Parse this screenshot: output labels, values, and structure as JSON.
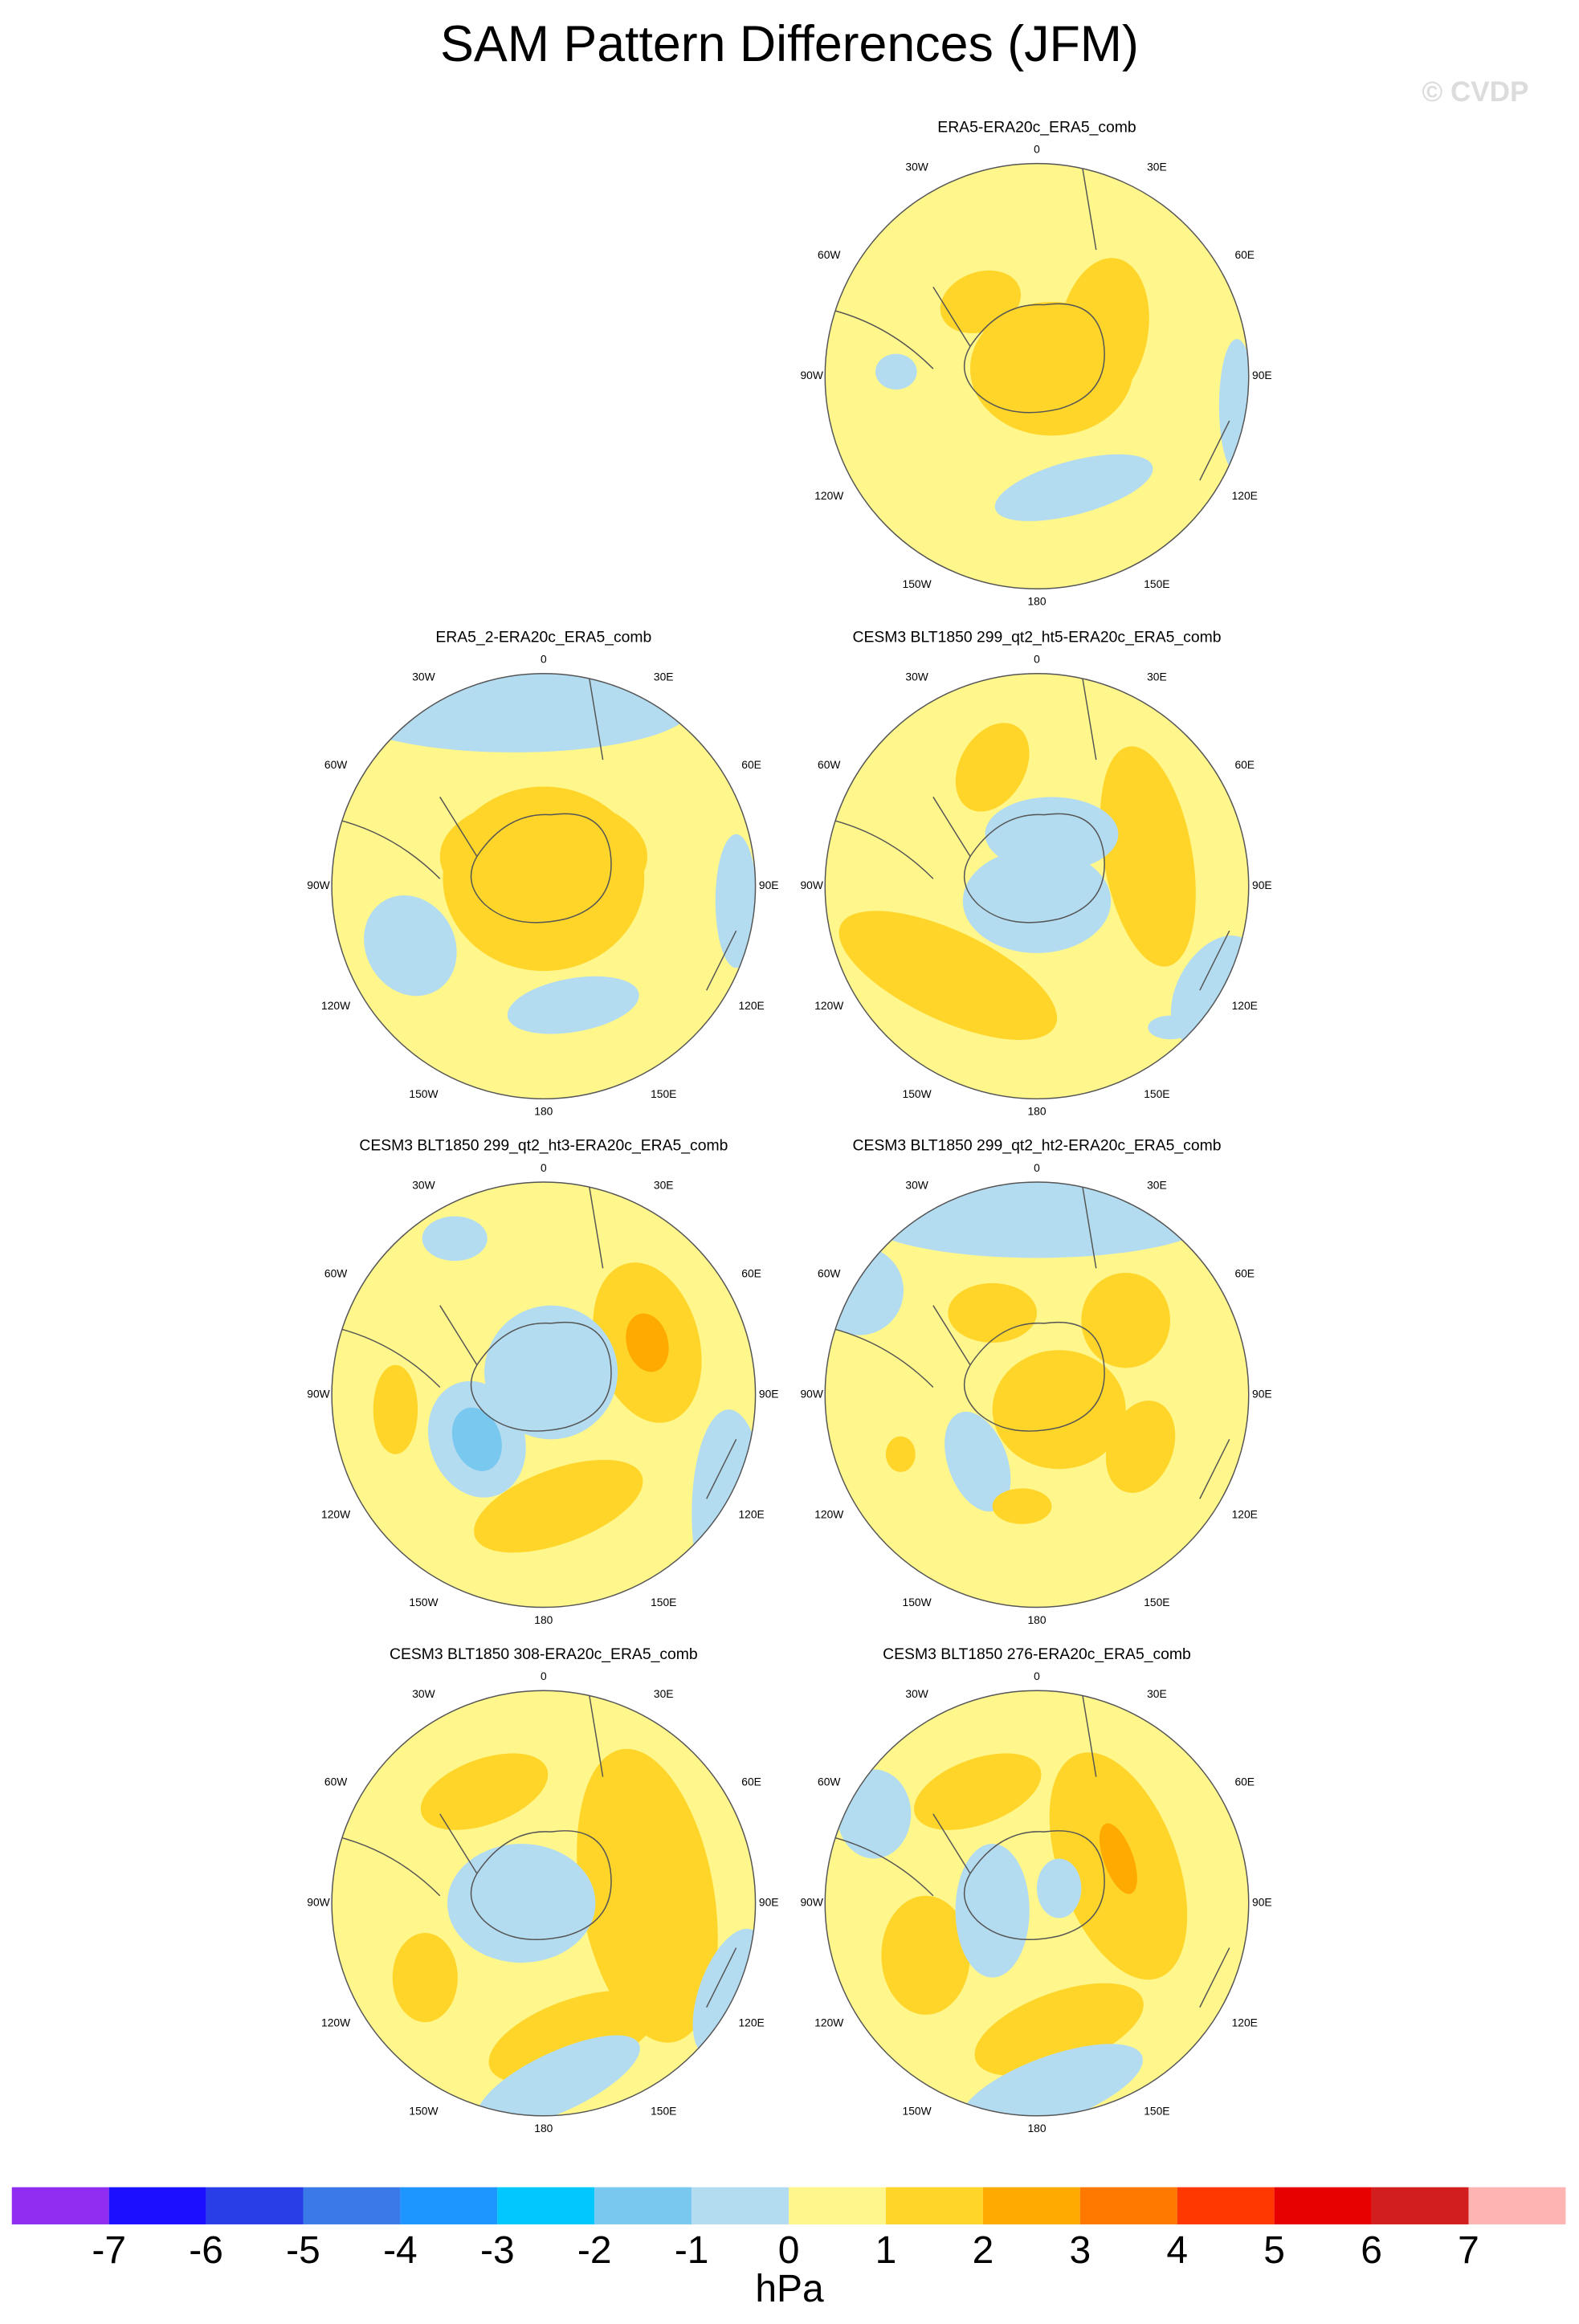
{
  "chart_data": {
    "type": "polar-map-panel",
    "title": "SAM Pattern Differences (JFM)",
    "watermark": "© CVDP",
    "panels": [
      {
        "title": "ERA5-ERA20c_ERA5_comb"
      },
      {
        "title": "ERA5_2-ERA20c_ERA5_comb"
      },
      {
        "title": "CESM3 BLT1850 299_qt2_ht5-ERA20c_ERA5_comb"
      },
      {
        "title": "CESM3 BLT1850 299_qt2_ht3-ERA20c_ERA5_comb"
      },
      {
        "title": "CESM3 BLT1850 299_qt2_ht2-ERA20c_ERA5_comb"
      },
      {
        "title": "CESM3 BLT1850 308-ERA20c_ERA5_comb"
      },
      {
        "title": "CESM3 BLT1850 276-ERA20c_ERA5_comb"
      }
    ],
    "lon_labels": [
      "0",
      "30E",
      "60E",
      "90E",
      "120E",
      "150E",
      "180",
      "150W",
      "120W",
      "90W",
      "60W",
      "30W"
    ],
    "colorbar": {
      "levels": [
        -7,
        -6,
        -5,
        -4,
        -3,
        -2,
        -1,
        0,
        1,
        2,
        3,
        4,
        5,
        6,
        7
      ],
      "colors": [
        "#8f2cf0",
        "#1a10ff",
        "#2a3ee8",
        "#3a7ae8",
        "#1e96ff",
        "#00c8ff",
        "#78c8f0",
        "#b4dcf0",
        "#fff68c",
        "#ffd52a",
        "#ffaa00",
        "#ff7800",
        "#ff3700",
        "#e60000",
        "#d21e1e",
        "#ffb4b4"
      ],
      "label": "hPa"
    }
  }
}
